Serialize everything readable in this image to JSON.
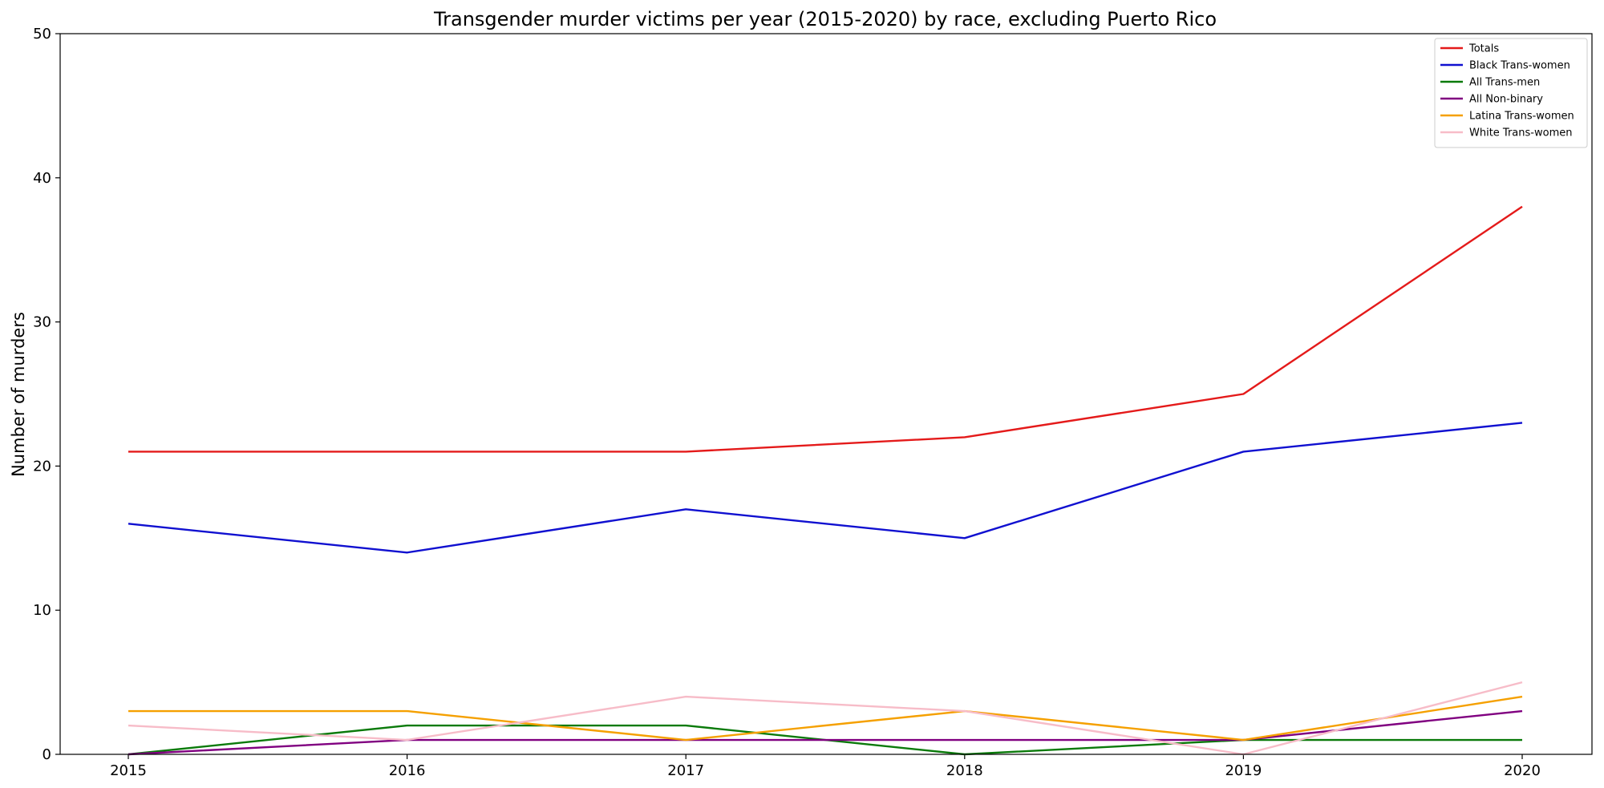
{
  "chart_data": {
    "type": "line",
    "title": "Transgender murder victims per year (2015-2020) by race, excluding Puerto Rico",
    "xlabel": "",
    "ylabel": "Number of murders",
    "x": [
      2015,
      2016,
      2017,
      2018,
      2019,
      2020
    ],
    "ylim": [
      0,
      50
    ],
    "yticks": [
      0,
      10,
      20,
      30,
      40,
      50
    ],
    "grid": false,
    "legend_position": "top-right",
    "series": [
      {
        "name": "Totals",
        "color": "#e41a1a",
        "values": [
          21,
          21,
          21,
          22,
          25,
          38
        ]
      },
      {
        "name": "Black Trans-women",
        "color": "#1010d0",
        "values": [
          16,
          14,
          17,
          15,
          21,
          23
        ]
      },
      {
        "name": "All Trans-men",
        "color": "#0a7a0a",
        "values": [
          0,
          2,
          2,
          0,
          1,
          1
        ]
      },
      {
        "name": "All Non-binary",
        "color": "#800080",
        "values": [
          0,
          1,
          1,
          1,
          1,
          3
        ]
      },
      {
        "name": "Latina Trans-women",
        "color": "#f5a000",
        "values": [
          3,
          3,
          1,
          3,
          1,
          4
        ]
      },
      {
        "name": "White Trans-women",
        "color": "#f7bcc8",
        "values": [
          2,
          1,
          4,
          3,
          0,
          5
        ]
      }
    ]
  }
}
